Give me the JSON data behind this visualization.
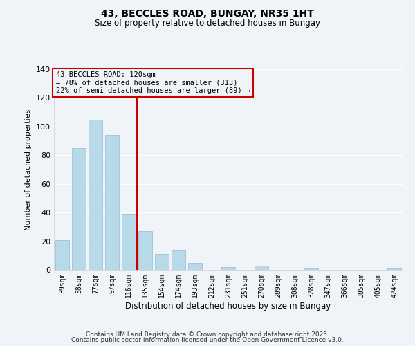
{
  "title": "43, BECCLES ROAD, BUNGAY, NR35 1HT",
  "subtitle": "Size of property relative to detached houses in Bungay",
  "xlabel": "Distribution of detached houses by size in Bungay",
  "ylabel": "Number of detached properties",
  "bar_color": "#b8d9e8",
  "bar_edge_color": "#8bbdd4",
  "categories": [
    "39sqm",
    "58sqm",
    "77sqm",
    "97sqm",
    "116sqm",
    "135sqm",
    "154sqm",
    "174sqm",
    "193sqm",
    "212sqm",
    "231sqm",
    "251sqm",
    "270sqm",
    "289sqm",
    "308sqm",
    "328sqm",
    "347sqm",
    "366sqm",
    "385sqm",
    "405sqm",
    "424sqm"
  ],
  "values": [
    21,
    85,
    105,
    94,
    39,
    27,
    11,
    14,
    5,
    0,
    2,
    0,
    3,
    0,
    0,
    1,
    0,
    0,
    0,
    0,
    1
  ],
  "ylim": [
    0,
    140
  ],
  "yticks": [
    0,
    20,
    40,
    60,
    80,
    100,
    120,
    140
  ],
  "annotation_title": "43 BECCLES ROAD: 120sqm",
  "annotation_line1": "← 78% of detached houses are smaller (313)",
  "annotation_line2": "22% of semi-detached houses are larger (89) →",
  "vline_color": "#cc0000",
  "annotation_box_edge_color": "#cc0000",
  "footer1": "Contains HM Land Registry data © Crown copyright and database right 2025.",
  "footer2": "Contains public sector information licensed under the Open Government Licence v3.0.",
  "background_color": "#f0f4f8",
  "grid_color": "#ffffff"
}
